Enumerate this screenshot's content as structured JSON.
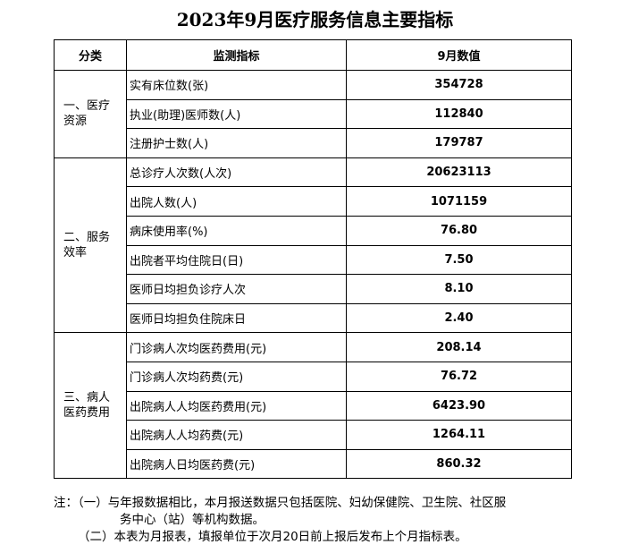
{
  "title": "2023年9月医疗服务信息主要指标",
  "headers": [
    "分类",
    "监测指标",
    "9月数值"
  ],
  "groups": [
    {
      "category": "一、医疗资源",
      "rows": [
        [
          "实有床位数(张)",
          "354728"
        ],
        [
          "执业(助理)医师数(人)",
          "112840"
        ],
        [
          "注册护士数(人)",
          "179787"
        ]
      ]
    },
    {
      "category": "二、服务效率",
      "rows": [
        [
          "总诊疗人次数(人次)",
          "20623113"
        ],
        [
          "出院人数(人)",
          "1071159"
        ],
        [
          "病床使用率(%)",
          "76.80"
        ],
        [
          "出院者平均住院日(日)",
          "7.50"
        ],
        [
          "医师日均担负诊疗人次",
          "8.10"
        ],
        [
          "医师日均担负住院床日",
          "2.40"
        ]
      ]
    },
    {
      "category": "三、病人医药费用",
      "rows": [
        [
          "门诊病人次均医药费用(元)",
          "208.14"
        ],
        [
          "门诊病人次均药费(元)",
          "76.72"
        ],
        [
          "出院病人人均医药费用(元)",
          "6423.90"
        ],
        [
          "出院病人人均药费(元)",
          "1264.11"
        ],
        [
          "出院病人日均医药费(元)",
          "860.32"
        ]
      ]
    }
  ],
  "notes": {
    "prefix": "注：",
    "line1": "（一）与年报数据相比，本月报送数据只包括医院、妇幼保健院、卫生院、社区服",
    "line2": "务中心（站）等机构数据。",
    "line3": "（二）本表为月报表，填报单位于次月20日前上报后发布上个月指标表。"
  }
}
